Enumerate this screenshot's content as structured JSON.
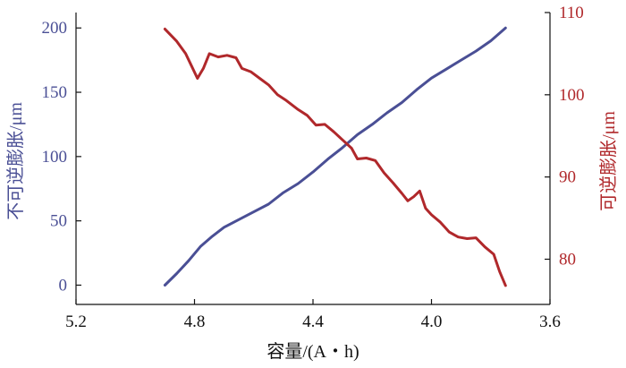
{
  "chart_data": {
    "type": "line",
    "xlabel": "容量/(A・h)",
    "xlim": [
      5.2,
      3.6
    ],
    "x_ticks": [
      "5.2",
      "4.8",
      "4.4",
      "4.0",
      "3.6"
    ],
    "x_tick_values": [
      5.2,
      4.8,
      4.4,
      4.0,
      3.6
    ],
    "y_left": {
      "label": "不可逆膨胀/μm",
      "ylim": [
        -15,
        212
      ],
      "ticks": [
        "0",
        "50",
        "100",
        "150",
        "200"
      ],
      "tick_values": [
        0,
        50,
        100,
        150,
        200
      ],
      "color": "#4a4f95"
    },
    "y_right": {
      "label": "可逆膨胀/μm",
      "ylim": [
        74.5,
        110
      ],
      "ticks": [
        "80",
        "90",
        "100",
        "110"
      ],
      "tick_values": [
        80,
        90,
        100,
        110
      ],
      "color": "#b0282b"
    },
    "grid": false,
    "legend": "none",
    "series": [
      {
        "axis": "left",
        "color": "#4a4f95",
        "x": [
          4.9,
          4.86,
          4.82,
          4.78,
          4.74,
          4.7,
          4.65,
          4.6,
          4.55,
          4.5,
          4.45,
          4.4,
          4.35,
          4.3,
          4.25,
          4.2,
          4.15,
          4.1,
          4.05,
          4.0,
          3.95,
          3.9,
          3.85,
          3.8,
          3.75
        ],
        "y": [
          0,
          9,
          19,
          30,
          38,
          45,
          51,
          57,
          63,
          72,
          79,
          88,
          98,
          107,
          117,
          125,
          134,
          142,
          152,
          161,
          168,
          175,
          182,
          190,
          200
        ]
      },
      {
        "axis": "right",
        "color": "#b0282b",
        "x": [
          4.9,
          4.86,
          4.83,
          4.81,
          4.79,
          4.77,
          4.75,
          4.72,
          4.69,
          4.66,
          4.64,
          4.61,
          4.58,
          4.55,
          4.52,
          4.49,
          4.45,
          4.42,
          4.39,
          4.36,
          4.33,
          4.3,
          4.27,
          4.25,
          4.22,
          4.19,
          4.16,
          4.13,
          4.1,
          4.08,
          4.06,
          4.04,
          4.02,
          4.0,
          3.97,
          3.94,
          3.91,
          3.88,
          3.85,
          3.82,
          3.79,
          3.77,
          3.75
        ],
        "y": [
          108,
          106.5,
          105,
          103.5,
          102,
          103.2,
          105,
          104.6,
          104.8,
          104.5,
          103.2,
          102.8,
          102,
          101.2,
          100,
          99.3,
          98.2,
          97.5,
          96.3,
          96.4,
          95.5,
          94.5,
          93.5,
          92.2,
          92.3,
          92,
          90.5,
          89.3,
          88,
          87.1,
          87.6,
          88.3,
          86.2,
          85.4,
          84.5,
          83.3,
          82.7,
          82.5,
          82.6,
          81.5,
          80.6,
          78.5,
          76.8
        ]
      }
    ]
  }
}
